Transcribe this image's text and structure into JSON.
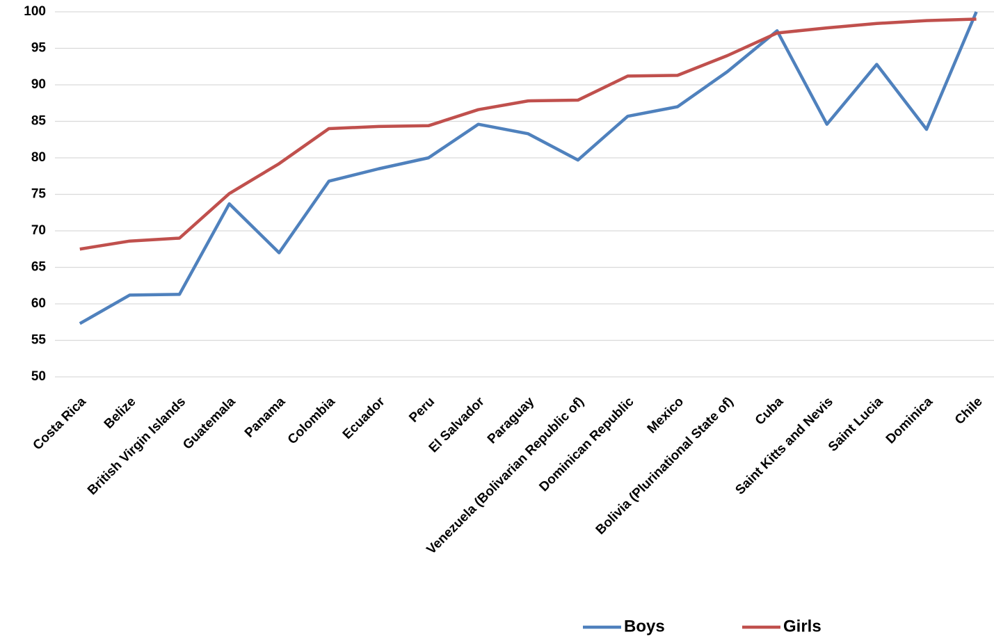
{
  "chart_data": {
    "type": "line",
    "categories": [
      "Costa Rica",
      "Belize",
      "British Virgin Islands",
      "Guatemala",
      "Panama",
      "Colombia",
      "Ecuador",
      "Peru",
      "El Salvador",
      "Paraguay",
      "Venezuela (Bolivarian Republic of)",
      "Dominican Republic",
      "Mexico",
      "Bolivia (Plurinational State of)",
      "Cuba",
      "Saint Kitts and Nevis",
      "Saint Lucia",
      "Dominica",
      "Chile"
    ],
    "series": [
      {
        "name": "Boys",
        "color": "#4f81bd",
        "values": [
          57.3,
          61.2,
          61.3,
          73.7,
          67.0,
          76.8,
          78.5,
          80.0,
          84.6,
          83.3,
          79.7,
          85.7,
          87.0,
          91.8,
          97.4,
          84.6,
          92.8,
          83.9,
          100
        ]
      },
      {
        "name": "Girls",
        "color": "#c0504d",
        "values": [
          67.5,
          68.6,
          69.0,
          75.1,
          79.2,
          84.0,
          84.3,
          84.4,
          86.6,
          87.8,
          87.9,
          91.2,
          91.3,
          94.0,
          97.1,
          97.8,
          98.4,
          98.8,
          99.0
        ]
      }
    ],
    "ylim": [
      50,
      100
    ],
    "yticks": [
      50,
      55,
      60,
      65,
      70,
      75,
      80,
      85,
      90,
      95,
      100
    ],
    "grid": true,
    "legend": "bottom"
  }
}
